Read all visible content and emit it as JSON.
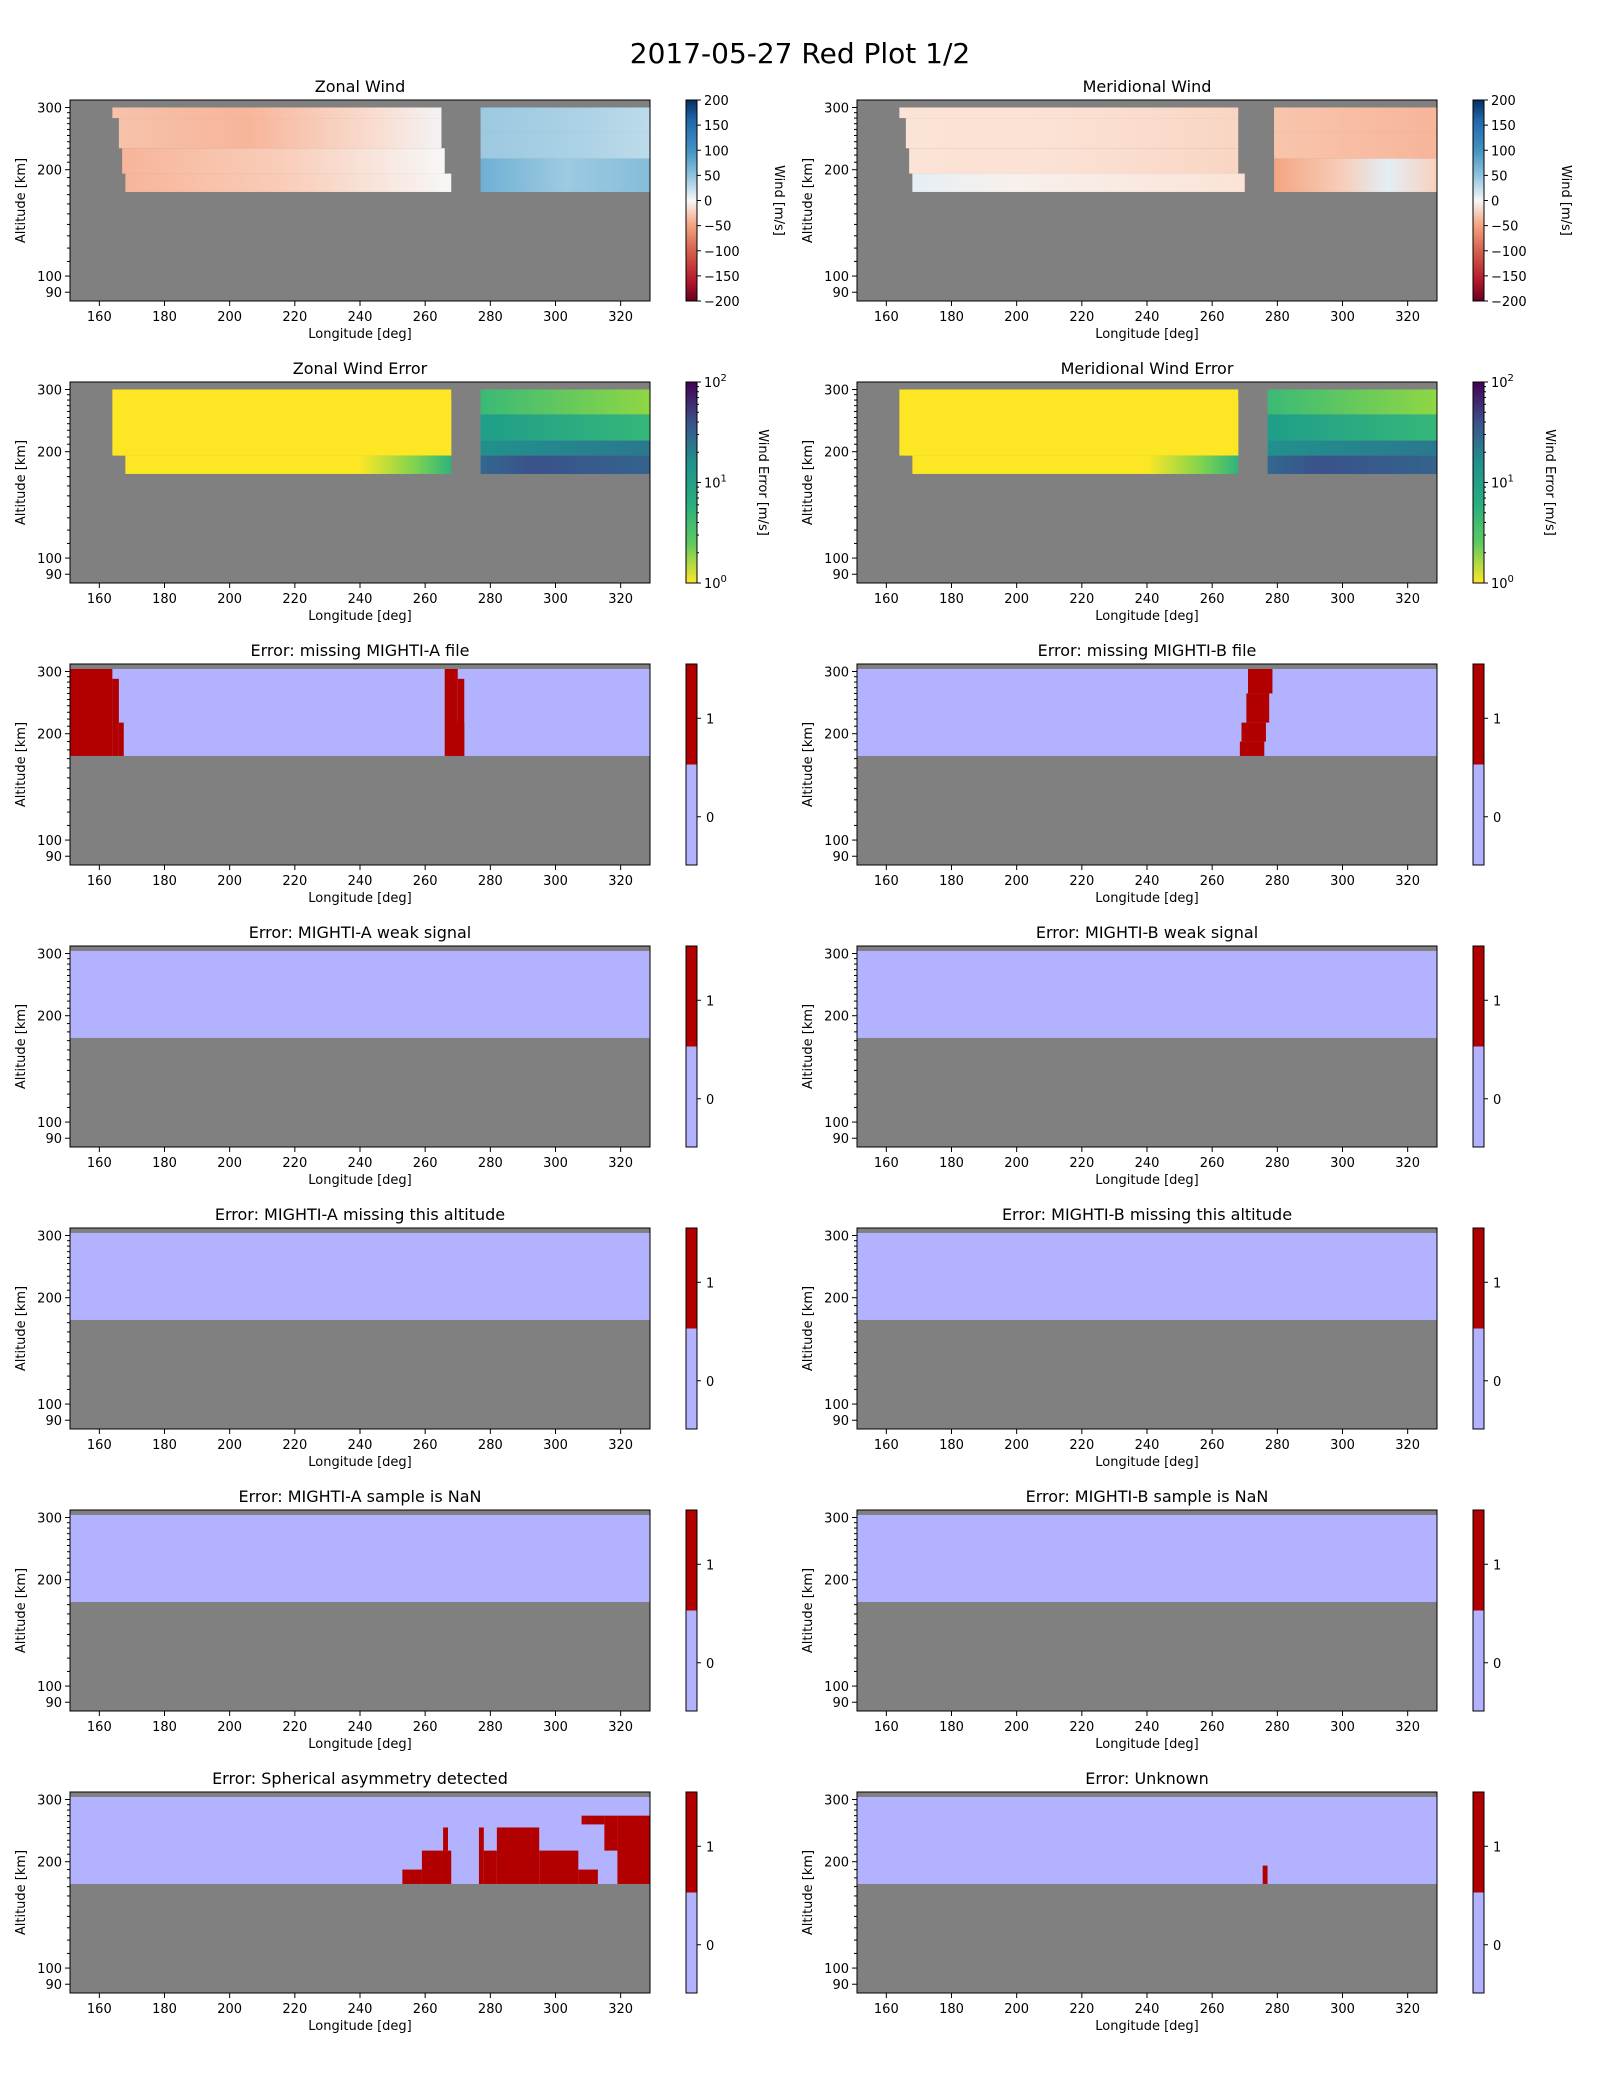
{
  "figure": {
    "title": "2017-05-27 Red Plot 1/2"
  },
  "colors": {
    "background_gray": "#808080",
    "flag_zero": "#b2b2ff",
    "flag_one": "#b20000",
    "frame": "#000000"
  },
  "chart_data": [
    {
      "id": "zonal-wind",
      "type": "heatmap",
      "title": "Zonal Wind",
      "xlabel": "Longitude [deg]",
      "ylabel": "Altitude [km]",
      "xlim": [
        151,
        329
      ],
      "ylim": [
        85,
        315
      ],
      "yscale": "log",
      "xticks": [
        160,
        180,
        200,
        220,
        240,
        260,
        280,
        300,
        320
      ],
      "yticks": [
        90,
        100,
        200,
        300
      ],
      "colorbar": {
        "kind": "diverging",
        "label": "Wind [m/s]",
        "range": [
          -200,
          200
        ],
        "ticks": [
          "200",
          "150",
          "100",
          "50",
          "0",
          "−50",
          "−100",
          "−150",
          "−200"
        ]
      },
      "field": "zonal"
    },
    {
      "id": "meridional-wind",
      "type": "heatmap",
      "title": "Meridional Wind",
      "xlabel": "Longitude [deg]",
      "ylabel": "Altitude [km]",
      "xlim": [
        151,
        329
      ],
      "ylim": [
        85,
        315
      ],
      "yscale": "log",
      "xticks": [
        160,
        180,
        200,
        220,
        240,
        260,
        280,
        300,
        320
      ],
      "yticks": [
        90,
        100,
        200,
        300
      ],
      "colorbar": {
        "kind": "diverging",
        "label": "Wind [m/s]",
        "range": [
          -200,
          200
        ],
        "ticks": [
          "200",
          "150",
          "100",
          "50",
          "0",
          "−50",
          "−100",
          "−150",
          "−200"
        ]
      },
      "field": "meridional"
    },
    {
      "id": "zonal-wind-error",
      "type": "heatmap",
      "title": "Zonal Wind Error",
      "xlabel": "Longitude [deg]",
      "ylabel": "Altitude [km]",
      "xlim": [
        151,
        329
      ],
      "ylim": [
        85,
        315
      ],
      "yscale": "log",
      "xticks": [
        160,
        180,
        200,
        220,
        240,
        260,
        280,
        300,
        320
      ],
      "yticks": [
        90,
        100,
        200,
        300
      ],
      "colorbar": {
        "kind": "viridis-log",
        "label": "Wind Error [m/s]",
        "range": [
          1,
          100
        ],
        "ticks": [
          {
            "base": "10",
            "exp": "2"
          },
          {
            "base": "10",
            "exp": "1"
          },
          {
            "base": "10",
            "exp": "0"
          }
        ]
      },
      "field": "zonal_error"
    },
    {
      "id": "meridional-wind-error",
      "type": "heatmap",
      "title": "Meridional Wind Error",
      "xlabel": "Longitude [deg]",
      "ylabel": "Altitude [km]",
      "xlim": [
        151,
        329
      ],
      "ylim": [
        85,
        315
      ],
      "yscale": "log",
      "xticks": [
        160,
        180,
        200,
        220,
        240,
        260,
        280,
        300,
        320
      ],
      "yticks": [
        90,
        100,
        200,
        300
      ],
      "colorbar": {
        "kind": "viridis-log",
        "label": "Wind Error [m/s]",
        "range": [
          1,
          100
        ],
        "ticks": [
          {
            "base": "10",
            "exp": "2"
          },
          {
            "base": "10",
            "exp": "1"
          },
          {
            "base": "10",
            "exp": "0"
          }
        ]
      },
      "field": "meridional_error"
    },
    {
      "id": "missing-a-file",
      "type": "heatmap",
      "title": "Error: missing MIGHTI-A file",
      "xlabel": "Longitude [deg]",
      "ylabel": "Altitude [km]",
      "xlim": [
        151,
        329
      ],
      "ylim": [
        85,
        315
      ],
      "yscale": "log",
      "xticks": [
        160,
        180,
        200,
        220,
        240,
        260,
        280,
        300,
        320
      ],
      "yticks": [
        90,
        100,
        200,
        300
      ],
      "colorbar": {
        "kind": "binary",
        "ticks": [
          "1",
          "0"
        ]
      },
      "data_region": {
        "lon": [
          151,
          329
        ],
        "alt": [
          173,
          305
        ]
      },
      "flag_regions": [
        {
          "lon": [
            151,
            164
          ],
          "alt": [
            173,
            305
          ]
        },
        {
          "lon": [
            164,
            166
          ],
          "alt": [
            173,
            286
          ]
        },
        {
          "lon": [
            166,
            167.5
          ],
          "alt": [
            173,
            215
          ]
        },
        {
          "lon": [
            266,
            270
          ],
          "alt": [
            173,
            305
          ]
        },
        {
          "lon": [
            270,
            272
          ],
          "alt": [
            173,
            286
          ]
        },
        {
          "lon": [
            268,
            272
          ],
          "alt": [
            173,
            215
          ]
        }
      ]
    },
    {
      "id": "missing-b-file",
      "type": "heatmap",
      "title": "Error: missing MIGHTI-B file",
      "xlabel": "Longitude [deg]",
      "ylabel": "Altitude [km]",
      "xlim": [
        151,
        329
      ],
      "ylim": [
        85,
        315
      ],
      "yscale": "log",
      "xticks": [
        160,
        180,
        200,
        220,
        240,
        260,
        280,
        300,
        320
      ],
      "yticks": [
        90,
        100,
        200,
        300
      ],
      "colorbar": {
        "kind": "binary",
        "ticks": [
          "1",
          "0"
        ]
      },
      "data_region": {
        "lon": [
          151,
          329
        ],
        "alt": [
          173,
          305
        ]
      },
      "flag_regions": [
        {
          "lon": [
            271,
            278.5
          ],
          "alt": [
            260,
            305
          ]
        },
        {
          "lon": [
            270.5,
            277.5
          ],
          "alt": [
            215,
            260
          ]
        },
        {
          "lon": [
            269,
            276.5
          ],
          "alt": [
            190,
            215
          ]
        },
        {
          "lon": [
            268.5,
            276
          ],
          "alt": [
            173,
            190
          ]
        }
      ]
    },
    {
      "id": "a-weak-signal",
      "type": "heatmap",
      "title": "Error: MIGHTI-A weak signal",
      "xlabel": "Longitude [deg]",
      "ylabel": "Altitude [km]",
      "xlim": [
        151,
        329
      ],
      "ylim": [
        85,
        315
      ],
      "yscale": "log",
      "xticks": [
        160,
        180,
        200,
        220,
        240,
        260,
        280,
        300,
        320
      ],
      "yticks": [
        90,
        100,
        200,
        300
      ],
      "colorbar": {
        "kind": "binary",
        "ticks": [
          "1",
          "0"
        ]
      },
      "data_region": {
        "lon": [
          151,
          329
        ],
        "alt": [
          173,
          305
        ]
      },
      "flag_regions": []
    },
    {
      "id": "b-weak-signal",
      "type": "heatmap",
      "title": "Error: MIGHTI-B weak signal",
      "xlabel": "Longitude [deg]",
      "ylabel": "Altitude [km]",
      "xlim": [
        151,
        329
      ],
      "ylim": [
        85,
        315
      ],
      "yscale": "log",
      "xticks": [
        160,
        180,
        200,
        220,
        240,
        260,
        280,
        300,
        320
      ],
      "yticks": [
        90,
        100,
        200,
        300
      ],
      "colorbar": {
        "kind": "binary",
        "ticks": [
          "1",
          "0"
        ]
      },
      "data_region": {
        "lon": [
          151,
          329
        ],
        "alt": [
          173,
          305
        ]
      },
      "flag_regions": []
    },
    {
      "id": "a-missing-altitude",
      "type": "heatmap",
      "title": "Error: MIGHTI-A missing this altitude",
      "xlabel": "Longitude [deg]",
      "ylabel": "Altitude [km]",
      "xlim": [
        151,
        329
      ],
      "ylim": [
        85,
        315
      ],
      "yscale": "log",
      "xticks": [
        160,
        180,
        200,
        220,
        240,
        260,
        280,
        300,
        320
      ],
      "yticks": [
        90,
        100,
        200,
        300
      ],
      "colorbar": {
        "kind": "binary",
        "ticks": [
          "1",
          "0"
        ]
      },
      "data_region": {
        "lon": [
          151,
          329
        ],
        "alt": [
          173,
          305
        ]
      },
      "flag_regions": []
    },
    {
      "id": "b-missing-altitude",
      "type": "heatmap",
      "title": "Error: MIGHTI-B missing this altitude",
      "xlabel": "Longitude [deg]",
      "ylabel": "Altitude [km]",
      "xlim": [
        151,
        329
      ],
      "ylim": [
        85,
        315
      ],
      "yscale": "log",
      "xticks": [
        160,
        180,
        200,
        220,
        240,
        260,
        280,
        300,
        320
      ],
      "yticks": [
        90,
        100,
        200,
        300
      ],
      "colorbar": {
        "kind": "binary",
        "ticks": [
          "1",
          "0"
        ]
      },
      "data_region": {
        "lon": [
          151,
          329
        ],
        "alt": [
          173,
          305
        ]
      },
      "flag_regions": []
    },
    {
      "id": "a-sample-nan",
      "type": "heatmap",
      "title": "Error: MIGHTI-A sample is NaN",
      "xlabel": "Longitude [deg]",
      "ylabel": "Altitude [km]",
      "xlim": [
        151,
        329
      ],
      "ylim": [
        85,
        315
      ],
      "yscale": "log",
      "xticks": [
        160,
        180,
        200,
        220,
        240,
        260,
        280,
        300,
        320
      ],
      "yticks": [
        90,
        100,
        200,
        300
      ],
      "colorbar": {
        "kind": "binary",
        "ticks": [
          "1",
          "0"
        ]
      },
      "data_region": {
        "lon": [
          151,
          329
        ],
        "alt": [
          173,
          305
        ]
      },
      "flag_regions": []
    },
    {
      "id": "b-sample-nan",
      "type": "heatmap",
      "title": "Error: MIGHTI-B sample is NaN",
      "xlabel": "Longitude [deg]",
      "ylabel": "Altitude [km]",
      "xlim": [
        151,
        329
      ],
      "ylim": [
        85,
        315
      ],
      "yscale": "log",
      "xticks": [
        160,
        180,
        200,
        220,
        240,
        260,
        280,
        300,
        320
      ],
      "yticks": [
        90,
        100,
        200,
        300
      ],
      "colorbar": {
        "kind": "binary",
        "ticks": [
          "1",
          "0"
        ]
      },
      "data_region": {
        "lon": [
          151,
          329
        ],
        "alt": [
          173,
          305
        ]
      },
      "flag_regions": []
    },
    {
      "id": "spherical-asymmetry",
      "type": "heatmap",
      "title": "Error: Spherical asymmetry detected",
      "xlabel": "Longitude [deg]",
      "ylabel": "Altitude [km]",
      "xlim": [
        151,
        329
      ],
      "ylim": [
        85,
        315
      ],
      "yscale": "log",
      "xticks": [
        160,
        180,
        200,
        220,
        240,
        260,
        280,
        300,
        320
      ],
      "yticks": [
        90,
        100,
        200,
        300
      ],
      "colorbar": {
        "kind": "binary",
        "ticks": [
          "1",
          "0"
        ]
      },
      "data_region": {
        "lon": [
          151,
          329
        ],
        "alt": [
          173,
          305
        ]
      },
      "flag_regions": [
        {
          "lon": [
            253,
            259
          ],
          "alt": [
            173,
            190
          ]
        },
        {
          "lon": [
            259,
            265
          ],
          "alt": [
            173,
            215
          ]
        },
        {
          "lon": [
            265,
            268
          ],
          "alt": [
            173,
            215
          ]
        },
        {
          "lon": [
            265.5,
            267
          ],
          "alt": [
            215,
            250
          ]
        },
        {
          "lon": [
            276.5,
            278
          ],
          "alt": [
            173,
            250
          ]
        },
        {
          "lon": [
            278,
            282
          ],
          "alt": [
            173,
            215
          ]
        },
        {
          "lon": [
            282,
            295
          ],
          "alt": [
            173,
            250
          ]
        },
        {
          "lon": [
            295,
            307
          ],
          "alt": [
            173,
            215
          ]
        },
        {
          "lon": [
            307,
            313
          ],
          "alt": [
            173,
            190
          ]
        },
        {
          "lon": [
            319,
            329
          ],
          "alt": [
            173,
            270
          ]
        },
        {
          "lon": [
            315,
            319
          ],
          "alt": [
            215,
            270
          ]
        },
        {
          "lon": [
            308,
            315
          ],
          "alt": [
            255,
            270
          ]
        }
      ]
    },
    {
      "id": "unknown",
      "type": "heatmap",
      "title": "Error: Unknown",
      "xlabel": "Longitude [deg]",
      "ylabel": "Altitude [km]",
      "xlim": [
        151,
        329
      ],
      "ylim": [
        85,
        315
      ],
      "yscale": "log",
      "xticks": [
        160,
        180,
        200,
        220,
        240,
        260,
        280,
        300,
        320
      ],
      "yticks": [
        90,
        100,
        200,
        300
      ],
      "colorbar": {
        "kind": "binary",
        "ticks": [
          "1",
          "0"
        ]
      },
      "data_region": {
        "lon": [
          151,
          329
        ],
        "alt": [
          173,
          305
        ]
      },
      "flag_regions": [
        {
          "lon": [
            275.5,
            277
          ],
          "alt": [
            173,
            195
          ]
        }
      ]
    }
  ]
}
